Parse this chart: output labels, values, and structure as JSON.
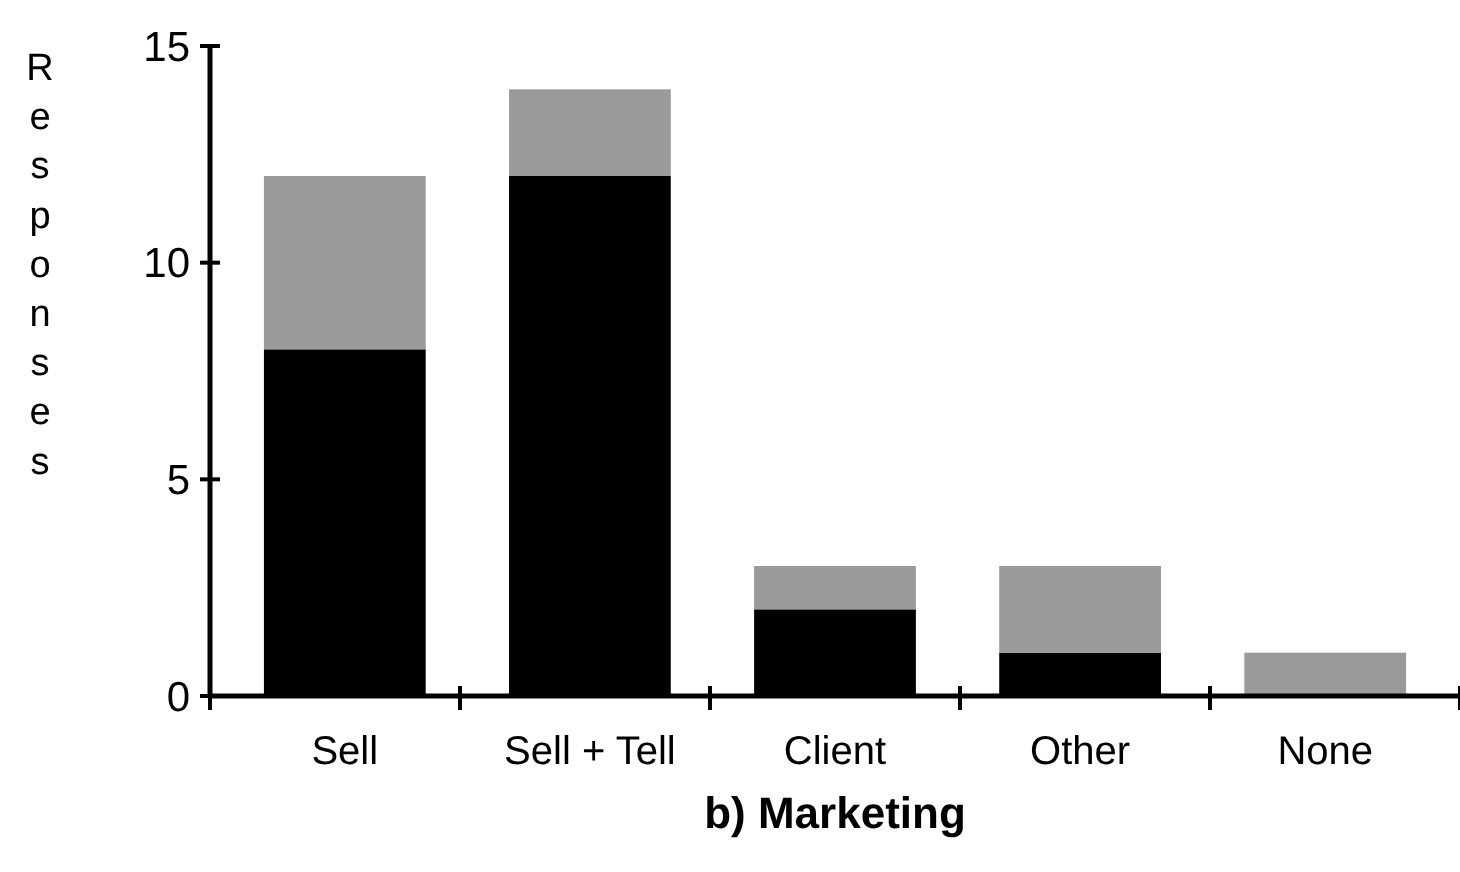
{
  "chart_data": {
    "type": "bar",
    "title": "b)  Marketing",
    "ylabel": "Responses",
    "categories": [
      "Sell",
      "Sell + Tell",
      "Client",
      "Other",
      "None"
    ],
    "stacked": true,
    "series": [
      {
        "color": "#000000",
        "values": [
          8,
          12,
          2,
          1,
          0
        ]
      },
      {
        "color": "#9a9a9a",
        "values": [
          4,
          2,
          1,
          2,
          1
        ]
      }
    ],
    "ylim": [
      0,
      15
    ],
    "yticks": [
      0,
      5,
      10,
      15
    ],
    "grid": false
  }
}
